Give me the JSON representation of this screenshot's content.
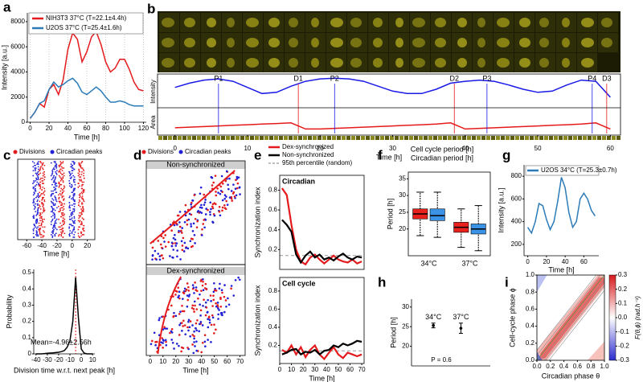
{
  "chart_data": [
    {
      "panel": "a",
      "type": "line",
      "xlabel": "Time [h]",
      "ylabel": "Intensity [a.u.]",
      "x": [
        0,
        5,
        10,
        15,
        20,
        25,
        30,
        35,
        40,
        45,
        50,
        55,
        60,
        65,
        70,
        75,
        80,
        85,
        90,
        95,
        100,
        105,
        110,
        115,
        120
      ],
      "xlim": [
        -3,
        123
      ],
      "ylim": [
        0,
        8700
      ],
      "xticks": [
        0,
        20,
        40,
        60,
        80,
        100,
        120
      ],
      "yticks": [
        0,
        2000,
        4000,
        6000,
        8000
      ],
      "grid": true,
      "series": [
        {
          "name": "NIH3T3 37°C (T=22.1±4.4h)",
          "color": "#e41a1c",
          "values": [
            300,
            800,
            1500,
            1200,
            2600,
            3000,
            2200,
            3400,
            5800,
            7100,
            6600,
            4800,
            5600,
            6800,
            7200,
            6200,
            4800,
            4000,
            4300,
            5000,
            5000,
            4200,
            3200,
            2600,
            2500
          ]
        },
        {
          "name": "U2OS 37°C (T=25.4±1.6h)",
          "color": "#2b7bb9",
          "values": [
            300,
            800,
            1500,
            1700,
            2600,
            3200,
            2800,
            3000,
            3300,
            3500,
            3100,
            2400,
            2200,
            2500,
            2800,
            2500,
            2000,
            1600,
            1600,
            1700,
            1600,
            1400,
            1300,
            1300,
            1300
          ]
        }
      ]
    },
    {
      "panel": "b",
      "type": "line",
      "xlabel": "Time [h]",
      "ylabels": [
        "Intensity",
        "Area"
      ],
      "x": [
        0,
        2,
        4,
        6,
        8,
        10,
        12,
        14,
        16,
        18,
        20,
        22,
        24,
        26,
        28,
        30,
        32,
        34,
        36,
        38,
        40,
        42,
        44,
        46,
        48,
        50,
        52,
        54,
        56,
        58,
        60
      ],
      "xlim": [
        -2.4,
        61.4
      ],
      "ylim": [
        0,
        1
      ],
      "xticks": [
        0,
        10,
        20,
        30,
        40,
        50,
        60
      ],
      "series": [
        {
          "color": "#1a1ae6",
          "values": [
            0.78,
            0.85,
            0.9,
            0.92,
            0.88,
            0.78,
            0.68,
            0.7,
            0.8,
            0.88,
            0.92,
            0.93,
            0.92,
            0.88,
            0.8,
            0.72,
            0.68,
            0.68,
            0.75,
            0.85,
            0.88,
            0.9,
            0.88,
            0.82,
            0.75,
            0.7,
            0.72,
            0.82,
            0.9,
            0.88,
            0.62
          ]
        },
        {
          "color": "#e61a1a",
          "values": [
            0.12,
            0.13,
            0.14,
            0.15,
            0.16,
            0.17,
            0.18,
            0.19,
            0.2,
            0.1,
            0.1,
            0.11,
            0.12,
            0.13,
            0.14,
            0.15,
            0.16,
            0.17,
            0.18,
            0.2,
            0.1,
            0.11,
            0.12,
            0.13,
            0.14,
            0.15,
            0.16,
            0.17,
            0.18,
            0.2,
            0.1
          ]
        }
      ],
      "markers": [
        {
          "label": "P1",
          "x": 6,
          "color": "#1a1ae6"
        },
        {
          "label": "D1",
          "x": 17,
          "color": "#e61a1a"
        },
        {
          "label": "P2",
          "x": 22,
          "color": "#1a1ae6"
        },
        {
          "label": "D2",
          "x": 38.5,
          "color": "#e61a1a"
        },
        {
          "label": "P3",
          "x": 43,
          "color": "#1a1ae6"
        },
        {
          "label": "P4",
          "x": 57.5,
          "color": "#1a1ae6"
        },
        {
          "label": "D3",
          "x": 59.5,
          "color": "#e61a1a"
        }
      ]
    },
    {
      "panel": "c",
      "type": "raster",
      "xlabel": "Time [h]",
      "xlim": [
        -72,
        30
      ],
      "xticks": [
        -60,
        -40,
        -20,
        0,
        20
      ],
      "series": [
        {
          "name": "Divisions",
          "color": "#e41a1c"
        },
        {
          "name": "Circadian peaks",
          "color": "#1f1fd6"
        }
      ]
    },
    {
      "type": "line",
      "xlabel": "Division time w.r.t. next peak [h]",
      "ylabel": "Probability",
      "x": [
        -40,
        -37.5,
        -35,
        -32.5,
        -30,
        -27.5,
        -25,
        -22.5,
        -20,
        -17.5,
        -15,
        -12.5,
        -10,
        -7.5,
        -5,
        -2.5,
        0,
        2.5,
        5,
        7.5,
        10
      ],
      "xlim": [
        -42,
        12
      ],
      "ylim": [
        0,
        0.52
      ],
      "xticks": [
        -40,
        -30,
        -20,
        -10,
        0,
        10
      ],
      "yticks": [
        0,
        0.1,
        0.2,
        0.3,
        0.4,
        0.5
      ],
      "series": [
        {
          "color": "#000000",
          "values": [
            0,
            0,
            0,
            0.002,
            0.004,
            0.005,
            0.006,
            0.008,
            0.01,
            0.014,
            0.02,
            0.04,
            0.08,
            0.2,
            0.47,
            0.22,
            0.03,
            0.005,
            0,
            0,
            0
          ]
        }
      ],
      "vline": -4.96,
      "vline_color": "#e41a1c",
      "annotation": "Mean=-4.96±2.56h",
      "annotation_color": "#e41a1c"
    },
    {
      "panel": "d",
      "type": "raster",
      "xlabel": "Time [h]",
      "xlim": [
        -3,
        74
      ],
      "xticks": [
        0,
        10,
        20,
        30,
        40,
        50,
        60,
        70
      ],
      "strips": [
        "Non-synchronized",
        "Dex-synchronized"
      ],
      "series": [
        {
          "name": "Divisions",
          "color": "#e41a1c"
        },
        {
          "name": "Circadian peaks",
          "color": "#1f1fd6"
        }
      ]
    },
    {
      "panel": "e",
      "type": "line",
      "title": "Circadian",
      "ylabel": "Synchronization index",
      "x": [
        2,
        6,
        10,
        14,
        18,
        22,
        26,
        30,
        34,
        38,
        42,
        46,
        50,
        54,
        58,
        62,
        66,
        70
      ],
      "xlim": [
        0,
        72
      ],
      "ylim": [
        0,
        0.95
      ],
      "yticks": [
        0.2,
        0.4,
        0.6,
        0.8
      ],
      "series": [
        {
          "name": "Dex-synchronized",
          "color": "#e41a1c",
          "values": [
            0.82,
            0.75,
            0.45,
            0.2,
            0.08,
            0.05,
            0.12,
            0.15,
            0.1,
            0.06,
            0.1,
            0.14,
            0.1,
            0.08,
            0.07,
            0.1,
            0.06,
            0.08
          ]
        },
        {
          "name": "Non-synchronized",
          "color": "#000000",
          "values": [
            0.5,
            0.45,
            0.38,
            0.15,
            0.07,
            0.14,
            0.18,
            0.12,
            0.15,
            0.1,
            0.12,
            0.09,
            0.13,
            0.16,
            0.12,
            0.1,
            0.13,
            0.12
          ]
        }
      ],
      "reference": {
        "name": "95th percentile (random)",
        "value": 0.14,
        "color": "#999999"
      }
    },
    {
      "type": "line",
      "title": "Cell cycle",
      "ylabel": "Synchronization index",
      "xlabel": "Time [h]",
      "x": [
        2,
        6,
        10,
        14,
        18,
        22,
        26,
        30,
        34,
        38,
        42,
        46,
        50,
        54,
        58,
        62,
        66,
        70
      ],
      "xlim": [
        0,
        72
      ],
      "ylim": [
        0,
        0.95
      ],
      "xticks": [
        0,
        10,
        20,
        30,
        40,
        50,
        60,
        70
      ],
      "yticks": [
        0.2,
        0.4,
        0.6,
        0.8
      ],
      "series": [
        {
          "color": "#e41a1c",
          "values": [
            0.15,
            0.12,
            0.2,
            0.1,
            0.18,
            0.07,
            0.15,
            0.2,
            0.1,
            0.05,
            0.12,
            0.18,
            0.1,
            0.06,
            0.12,
            0.1,
            0.08,
            0.1
          ]
        },
        {
          "color": "#000000",
          "values": [
            0.1,
            0.12,
            0.15,
            0.16,
            0.1,
            0.13,
            0.12,
            0.15,
            0.1,
            0.14,
            0.15,
            0.2,
            0.18,
            0.22,
            0.2,
            0.22,
            0.25,
            0.24
          ]
        }
      ],
      "reference": {
        "value": 0.14,
        "color": "#999999"
      }
    },
    {
      "panel": "f",
      "type": "box",
      "ylabel": "Period [h]",
      "categories": [
        "34°C",
        "37°C"
      ],
      "ylim": [
        12,
        37
      ],
      "yticks": [
        20,
        25,
        30,
        35
      ],
      "series": [
        {
          "name": "Cell cycle period [h]",
          "color": "#e8211d",
          "boxes": [
            {
              "min": 18,
              "q1": 23,
              "median": 24.5,
              "q3": 26,
              "max": 31
            },
            {
              "min": 14.5,
              "q1": 19,
              "median": 20.5,
              "q3": 22,
              "max": 26
            }
          ]
        },
        {
          "name": "Circadian period [h]",
          "color": "#3a93e6",
          "boxes": [
            {
              "min": 17.5,
              "q1": 22.5,
              "median": 24,
              "q3": 26,
              "max": 31
            },
            {
              "min": 13.5,
              "q1": 18.5,
              "median": 20,
              "q3": 21.5,
              "max": 27
            }
          ]
        }
      ]
    },
    {
      "panel": "g",
      "type": "line",
      "xlabel": "Time [h]",
      "ylabel": "Intensity [a.u.]",
      "x": [
        0,
        4,
        8,
        12,
        16,
        20,
        24,
        28,
        32,
        36,
        40,
        44,
        48,
        52,
        56,
        60,
        64,
        68,
        72
      ],
      "xlim": [
        -4,
        76
      ],
      "ylim": [
        100,
        900
      ],
      "xticks": [
        0,
        20,
        40,
        60
      ],
      "yticks": [
        200,
        400,
        600,
        800
      ],
      "series": [
        {
          "name": "U2OS 34°C (T=25.3±0.7h)",
          "color": "#2b7bb9",
          "values": [
            350,
            300,
            400,
            560,
            540,
            420,
            330,
            400,
            580,
            790,
            700,
            480,
            350,
            400,
            600,
            650,
            600,
            500,
            450
          ]
        }
      ]
    },
    {
      "panel": "h",
      "type": "errorbar",
      "ylabel": "Period [h]",
      "categories": [
        "34°C",
        "37°C"
      ],
      "values": [
        25.3,
        24.6
      ],
      "errors": [
        0.6,
        1.3
      ],
      "ylim": [
        15,
        32
      ],
      "yticks": [
        20,
        25,
        30
      ],
      "note": "P = 0.6"
    },
    {
      "panel": "i",
      "type": "heatmap",
      "xlabel": "Circadian phase θ",
      "ylabel": "Cell-cycle phase ϕ",
      "clabel": "F(θ,ϕ) (rad.h⁻¹)",
      "xlim": [
        0,
        1
      ],
      "ylim": [
        0,
        1
      ],
      "xticks": [
        {
          "value": 0,
          "label": "0.0"
        },
        0.2,
        0.4,
        0.6,
        0.8,
        {
          "value": 1,
          "label": "1.0"
        }
      ],
      "yticks": [
        {
          "value": 0,
          "label": "0.0"
        },
        0.2,
        0.4,
        0.6,
        0.8,
        {
          "value": 1,
          "label": "1.0"
        }
      ],
      "clim": [
        -0.3,
        0.3
      ],
      "cticks": [
        0.3,
        0.2,
        0.1,
        {
          "value": 0,
          "label": "0.0"
        },
        -0.1,
        -0.2,
        -0.3
      ]
    }
  ]
}
